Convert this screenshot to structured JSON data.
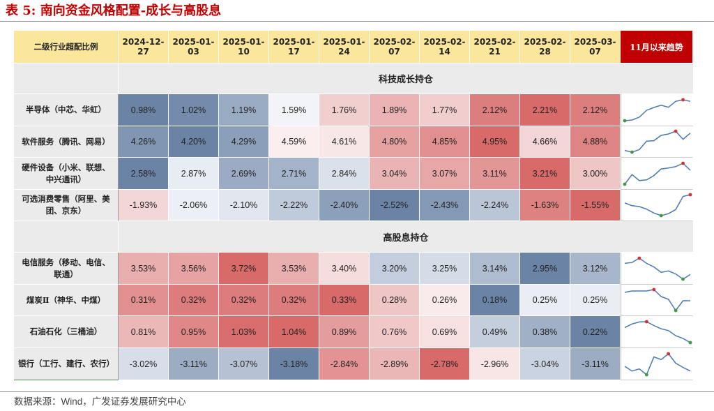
{
  "title": "表 5:  南向资金风格配置-成长与高股息",
  "header": {
    "corner": "二级行业超配比例",
    "dates": [
      "2024-12-27",
      "2025-01-03",
      "2025-01-10",
      "2025-01-17",
      "2025-01-24",
      "2025-02-07",
      "2025-02-14",
      "2025-02-21",
      "2025-02-28",
      "2025-03-07"
    ],
    "trend": "11月以来趋势"
  },
  "colors": {
    "trend_header": "#c00000",
    "header": "#fbe79c",
    "section": "#ebebeb",
    "high": "#d86a6a",
    "low": "#6b84a6"
  },
  "sections": [
    {
      "title": "科技成长持仓",
      "rows": [
        {
          "label": "半导体（中芯、华虹）",
          "values": [
            "0.98%",
            "1.02%",
            "1.19%",
            "1.59%",
            "1.76%",
            "1.89%",
            "1.77%",
            "2.12%",
            "2.21%",
            "2.12%"
          ]
        },
        {
          "label": "软件服务（腾讯、网易）",
          "values": [
            "4.26%",
            "4.20%",
            "4.29%",
            "4.59%",
            "4.61%",
            "4.80%",
            "4.85%",
            "4.95%",
            "4.66%",
            "4.88%"
          ]
        },
        {
          "label": "硬件设备（小米、联想、中兴通讯）",
          "values": [
            "2.58%",
            "2.87%",
            "2.69%",
            "2.71%",
            "2.84%",
            "3.04%",
            "3.07%",
            "3.11%",
            "3.21%",
            "3.00%"
          ]
        },
        {
          "label": "可选消费零售（阿里、美团、京东）",
          "values": [
            "-1.93%",
            "-2.06%",
            "-2.10%",
            "-2.22%",
            "-2.40%",
            "-2.52%",
            "-2.43%",
            "-2.24%",
            "-1.63%",
            "-1.55%"
          ]
        }
      ]
    },
    {
      "title": "高股息持仓",
      "rows": [
        {
          "label": "电信服务（移动、电信、联通）",
          "values": [
            "3.53%",
            "3.56%",
            "3.72%",
            "3.53%",
            "3.40%",
            "3.20%",
            "3.25%",
            "3.14%",
            "2.95%",
            "3.12%"
          ]
        },
        {
          "label": "煤炭Ⅱ（神华、中煤）",
          "values": [
            "0.31%",
            "0.32%",
            "0.32%",
            "0.32%",
            "0.33%",
            "0.28%",
            "0.26%",
            "0.18%",
            "0.25%",
            "0.25%"
          ]
        },
        {
          "label": "石油石化（三桶油）",
          "values": [
            "0.81%",
            "0.95%",
            "1.03%",
            "1.04%",
            "0.89%",
            "0.76%",
            "0.69%",
            "0.49%",
            "0.38%",
            "0.22%"
          ]
        },
        {
          "label": "银行（工行、建行、农行）",
          "values": [
            "-3.02%",
            "-3.11%",
            "-3.07%",
            "-3.18%",
            "-2.84%",
            "-2.89%",
            "-2.78%",
            "-2.96%",
            "-3.04%",
            "-3.11%"
          ]
        }
      ]
    }
  ],
  "source": {
    "prefix": "数据来源：",
    "wind": "Wind",
    "rest": "，广发证券发展研究中心"
  }
}
